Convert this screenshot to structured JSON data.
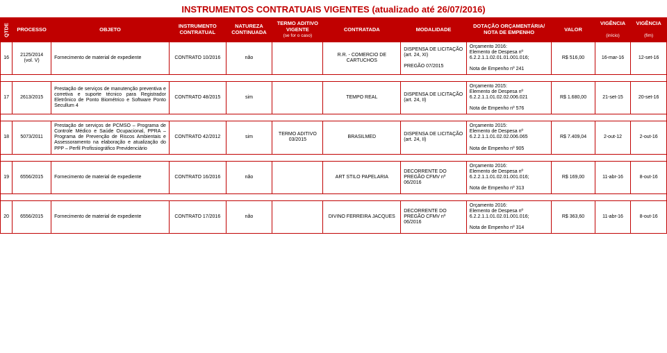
{
  "title": "INSTRUMENTOS CONTRATUAIS VIGENTES (atualizado até 26/07/2016)",
  "headers": {
    "qtde": "QTDE",
    "processo": "PROCESSO",
    "objeto": "OBJETO",
    "instrumento": "INSTRUMENTO CONTRATUAL",
    "natureza": "NATUREZA CONTINUADA",
    "termo_top": "TERMO ADITIVO VIGENTE",
    "termo_sub": "(se for o caso)",
    "contratada": "CONTRATADA",
    "modalidade": "MODALIDADE",
    "dotacao": "DOTAÇÃO ORÇAMENTÁRIA/ NOTA DE EMPENHO",
    "valor": "VALOR",
    "vig_inicio_top": "VIGÊNCIA",
    "vig_inicio_sub": "(início)",
    "vig_fim_top": "VIGÊNCIA",
    "vig_fim_sub": "(fim)"
  },
  "colors": {
    "brand": "#c00000",
    "header_text": "#ffffff"
  },
  "rows": [
    {
      "qtde": "16",
      "processo": "2125/2014 (vol. V)",
      "objeto": "Fornecimento de material de expediente",
      "instrumento": "CONTRATO 10/2016",
      "natureza": "não",
      "termo": "",
      "contratada": "R.R. - COMERCIO DE CARTUCHOS",
      "modalidade": "DISPENSA DE LICITAÇÃO (art. 24, XI)\n\nPREGÃO 07/2015",
      "dotacao": "Orçamento 2016:\nElemento de Despesa nº 6.2.2.1.1.02.01.01.001.016;\n\nNota de Empenho nº 241",
      "valor": "R$ 516,00",
      "inicio": "16-mar-16",
      "fim": "12-set-16"
    },
    {
      "qtde": "17",
      "processo": "2613/2015",
      "objeto": "Prestação de serviços de manutenção preventiva e corretiva e suporte técnico para Registrador Eletrônico de Ponto Biométrico e Software Ponto Secullum 4",
      "instrumento": "CONTRATO 48/2015",
      "natureza": "sim",
      "termo": "",
      "contratada": "TEMPO REAL",
      "modalidade": "DISPENSA DE LICITAÇÃO (art. 24, II)",
      "dotacao": "Orçamento 2015:\nElemento de Despesa nº 6.2.2.1.1.01.02.02.006.021\n\nNota de Empenho nº 576",
      "valor": "R$ 1.680,00",
      "inicio": "21-set-15",
      "fim": "20-set-16"
    },
    {
      "qtde": "18",
      "processo": "5073/2011",
      "objeto": "Prestação de serviços de PCMSO – Programa de Controle Médico e Saúde Ocupacional, PPRA – Programa de Prevenção de Riscos Ambientais e Assessoramento na elaboração e atualização do PPP – Perfil Profissiográfico Previdenciário",
      "instrumento": "CONTRATO 42/2012",
      "natureza": "sim",
      "termo": "TERMO ADITIVO 03/2015",
      "contratada": "BRASILMED",
      "modalidade": "DISPENSA DE LICITAÇÃO (art. 24, II)",
      "dotacao": "Orçamento 2015:\nElemento de Despesa nº 6.2.2.1.1.01.02.02.006.065\n\nNota de Empenho nº 905",
      "valor": "R$ 7.409,04",
      "inicio": "2-out-12",
      "fim": "2-out-16"
    },
    {
      "qtde": "19",
      "processo": "6556/2015",
      "objeto": "Fornecimento de material de expediente",
      "instrumento": "CONTRATO 16/2016",
      "natureza": "não",
      "termo": "",
      "contratada": "ART STILO PAPELARIA",
      "modalidade": "DECORRENTE DO PREGÃO CFMV nº 06/2016",
      "dotacao": "Orçamento 2016:\nElemento de Despesa nº 6.2.2.1.1.01.02.01.001.016;\n\nNota de Empenho nº 313",
      "valor": "R$ 169,00",
      "inicio": "11-abr-16",
      "fim": "8-out-16"
    },
    {
      "qtde": "20",
      "processo": "6556/2015",
      "objeto": "Fornecimento de material de expediente",
      "instrumento": "CONTRATO 17/2016",
      "natureza": "não",
      "termo": "",
      "contratada": "DIVINO FERREIRA JACQUES",
      "modalidade": "DECORRENTE DO PREGÃO CFMV nº 06/2016",
      "dotacao": "Orçamento 2016:\nElemento de Despesa nº 6.2.2.1.1.01.02.01.001.016;\n\nNota de Empenho nº 314",
      "valor": "R$ 363,60",
      "inicio": "11-abr-16",
      "fim": "8-out-16"
    }
  ]
}
